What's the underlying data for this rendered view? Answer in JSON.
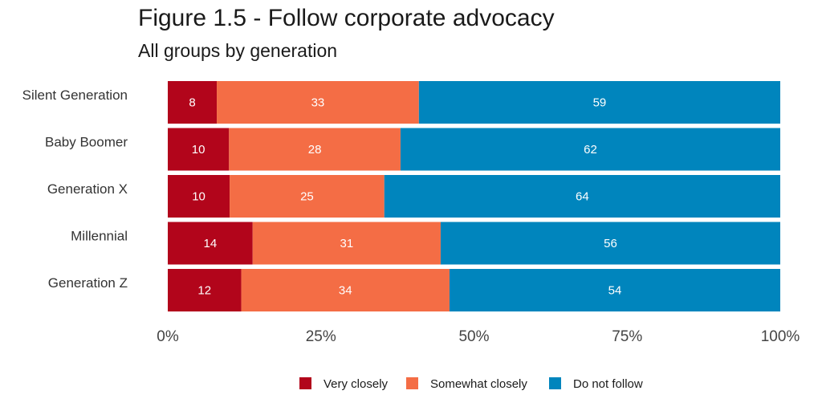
{
  "header": {
    "title": "Figure 1.5 - Follow corporate advocacy",
    "subtitle": "All groups by generation"
  },
  "chart_data": {
    "type": "bar",
    "orientation": "horizontal",
    "stacked": true,
    "title": "Figure 1.5 - Follow corporate advocacy",
    "subtitle": "All groups by generation",
    "xlabel": "",
    "ylabel": "",
    "categories": [
      "Silent Generation",
      "Baby Boomer",
      "Generation X",
      "Millennial",
      "Generation Z"
    ],
    "series": [
      {
        "name": "Very closely",
        "color": "#b2051b",
        "values": [
          8,
          10,
          10,
          14,
          12
        ]
      },
      {
        "name": "Somewhat closely",
        "color": "#f46d45",
        "values": [
          33,
          28,
          25,
          31,
          34
        ]
      },
      {
        "name": "Do not follow",
        "color": "#0085bd",
        "values": [
          59,
          62,
          64,
          56,
          54
        ]
      }
    ],
    "xlim": [
      0,
      100
    ],
    "xticks": [
      "0%",
      "25%",
      "50%",
      "75%",
      "100%"
    ],
    "grid": false,
    "legend_position": "bottom"
  }
}
